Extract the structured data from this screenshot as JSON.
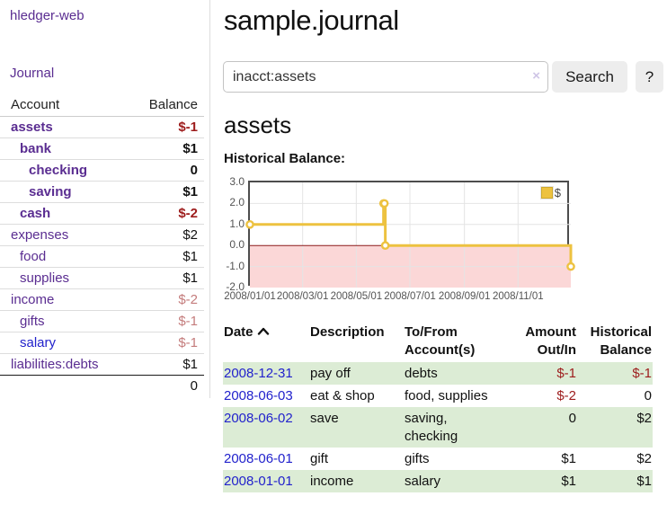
{
  "sidebar": {
    "brand": "hledger-web",
    "journal_link": "Journal",
    "accounts_table": {
      "col_account": "Account",
      "col_balance": "Balance",
      "rows": [
        {
          "name": "assets",
          "balance": "$-1",
          "depth": 1,
          "bold": true,
          "balance_style": "neg"
        },
        {
          "name": "bank",
          "balance": "$1",
          "depth": 2,
          "bold": true,
          "balance_style": "pos"
        },
        {
          "name": "checking",
          "balance": "0",
          "depth": 3,
          "bold": true,
          "balance_style": "pos"
        },
        {
          "name": "saving",
          "balance": "$1",
          "depth": 3,
          "bold": true,
          "balance_style": "pos"
        },
        {
          "name": "cash",
          "balance": "$-2",
          "depth": 2,
          "bold": true,
          "balance_style": "neg"
        },
        {
          "name": "expenses",
          "balance": "$2",
          "depth": 1,
          "bold": false,
          "balance_style": "pos"
        },
        {
          "name": "food",
          "balance": "$1",
          "depth": 2,
          "bold": false,
          "balance_style": "pos"
        },
        {
          "name": "supplies",
          "balance": "$1",
          "depth": 2,
          "bold": false,
          "balance_style": "pos"
        },
        {
          "name": "income",
          "balance": "$-2",
          "depth": 1,
          "bold": false,
          "balance_style": "neg-muted"
        },
        {
          "name": "gifts",
          "balance": "$-1",
          "depth": 2,
          "bold": false,
          "balance_style": "neg-muted"
        },
        {
          "name": "salary",
          "balance": "$-1",
          "depth": 2,
          "bold": false,
          "balance_style": "neg-muted",
          "link_color": "blue"
        },
        {
          "name": "liabilities:debts",
          "balance": "$1",
          "depth": 1,
          "bold": false,
          "balance_style": "pos"
        }
      ],
      "total": "0"
    }
  },
  "main": {
    "title": "sample.journal",
    "search": {
      "value": "inacct:assets",
      "clear_icon": "×",
      "button_label": "Search",
      "help_label": "?"
    },
    "account_heading": "assets",
    "chart_label": "Historical Balance:"
  },
  "chart_data": {
    "type": "line",
    "step": true,
    "title": "Historical Balance",
    "series": [
      {
        "name": "$",
        "points": [
          [
            "2008-01-01",
            1
          ],
          [
            "2008-06-01",
            2
          ],
          [
            "2008-06-02",
            2
          ],
          [
            "2008-06-03",
            0
          ],
          [
            "2008-12-31",
            -1
          ]
        ]
      }
    ],
    "x_range": [
      "2008-01-01",
      "2008-12-31"
    ],
    "ylim": [
      -2,
      3
    ],
    "y_ticks": [
      "3.0",
      "2.0",
      "1.0",
      "0.0",
      "-1.0",
      "-2.0"
    ],
    "x_ticks": [
      "2008/01/01",
      "2008/03/01",
      "2008/05/01",
      "2008/07/01",
      "2008/09/01",
      "2008/11/01"
    ],
    "legend_position": "top-right",
    "grid": true,
    "line_color": "#edc240",
    "negative_region_color": "#fbd7d7",
    "zero_line_color": "#8b1b1b"
  },
  "register": {
    "headers": {
      "date": "Date",
      "description": "Description",
      "accounts": "To/From Account(s)",
      "amount": "Amount Out/In",
      "balance": "Historical Balance"
    },
    "rows": [
      {
        "date": "2008-12-31",
        "description": "pay off",
        "accounts": "debts",
        "amount": "$-1",
        "balance": "$-1",
        "amount_neg": true,
        "balance_neg": true,
        "green": true
      },
      {
        "date": "2008-06-03",
        "description": "eat & shop",
        "accounts": "food, supplies",
        "amount": "$-2",
        "balance": "0",
        "amount_neg": true,
        "balance_neg": false,
        "green": false
      },
      {
        "date": "2008-06-02",
        "description": "save",
        "accounts": "saving, checking",
        "amount": "0",
        "balance": "$2",
        "amount_neg": false,
        "balance_neg": false,
        "green": true
      },
      {
        "date": "2008-06-01",
        "description": "gift",
        "accounts": "gifts",
        "amount": "$1",
        "balance": "$2",
        "amount_neg": false,
        "balance_neg": false,
        "green": false
      },
      {
        "date": "2008-01-01",
        "description": "income",
        "accounts": "salary",
        "amount": "$1",
        "balance": "$1",
        "amount_neg": false,
        "balance_neg": false,
        "green": true
      }
    ]
  },
  "colors": {
    "link_purple": "#5a2d91",
    "link_blue": "#2222cc",
    "negative": "#9d1c1c",
    "negative_muted": "#c47c7c",
    "row_green": "#dcecd5",
    "chart_line": "#edc240"
  }
}
